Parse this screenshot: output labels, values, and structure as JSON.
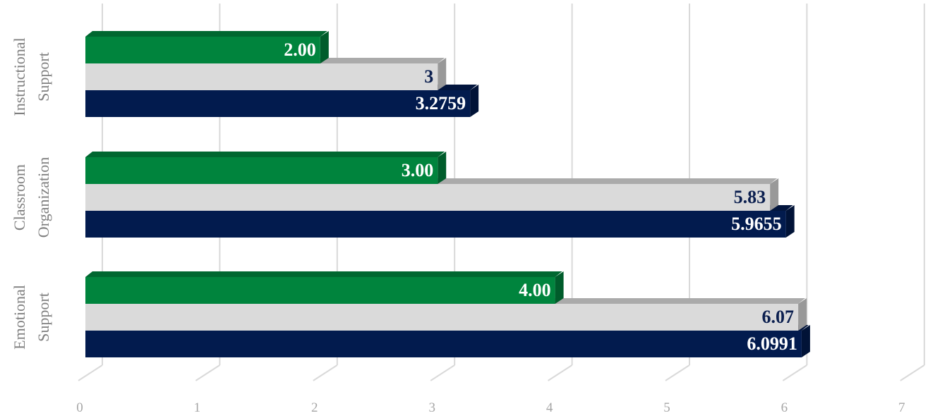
{
  "chart_data": {
    "type": "bar",
    "orientation": "horizontal",
    "three_d": true,
    "categories": [
      "Instructional Support",
      "Classroom Organization",
      "Emotional Support"
    ],
    "category_label_lines": [
      [
        "Instructional",
        "Support"
      ],
      [
        "Classroom",
        "Organization"
      ],
      [
        "Emotional",
        "Support"
      ]
    ],
    "series": [
      {
        "values": [
          2.0,
          3.0,
          4.0
        ],
        "labels": [
          "2.00",
          "3.00",
          "4.00"
        ],
        "color": "#00843d",
        "label_color": "#ffffff"
      },
      {
        "values": [
          3,
          5.83,
          6.07
        ],
        "labels": [
          "3",
          "5.83",
          "6.07"
        ],
        "color": "#dadada",
        "label_color": "#0b1f4f"
      },
      {
        "values": [
          3.2759,
          5.9655,
          6.0991
        ],
        "labels": [
          "3.2759",
          "5.9655",
          "6.0991"
        ],
        "color": "#021b4e",
        "label_color": "#ffffff"
      }
    ],
    "xlim": [
      0,
      7
    ],
    "ticks": [
      "0",
      "1",
      "2",
      "3",
      "4",
      "5",
      "6",
      "7"
    ],
    "grid": true,
    "legend": "none",
    "title": "",
    "xlabel": "",
    "ylabel": ""
  }
}
